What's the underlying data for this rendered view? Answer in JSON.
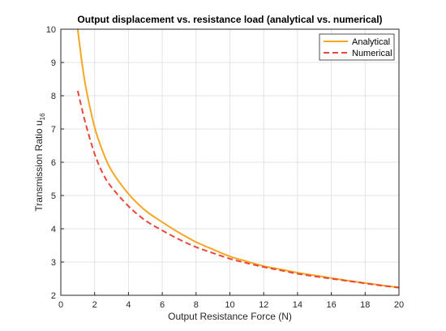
{
  "chart_data": {
    "type": "line",
    "title": "Output displacement vs. resistance load (analytical vs. numerical)",
    "xlabel": "Output Resistance Force (N)",
    "ylabel": "Transmission  Ratio  u",
    "ylabel_subscript": "16",
    "xlim": [
      0,
      20
    ],
    "ylim": [
      2,
      10
    ],
    "xticks": [
      0,
      2,
      4,
      6,
      8,
      10,
      12,
      14,
      16,
      18,
      20
    ],
    "yticks": [
      2,
      3,
      4,
      5,
      6,
      7,
      8,
      9,
      10
    ],
    "grid": true,
    "legend_position": "top-right",
    "series": [
      {
        "name": "Analytical",
        "color": "#f5a623",
        "style": "solid",
        "x": [
          1.0,
          1.25,
          1.5,
          2.0,
          2.5,
          3.0,
          4.0,
          5.0,
          6.0,
          7.0,
          8.0,
          9.0,
          10.0,
          11.0,
          12.0,
          13.0,
          14.0,
          15.0,
          16.0,
          17.0,
          18.0,
          19.0,
          20.0
        ],
        "y": [
          10.0,
          9.0,
          8.2,
          7.05,
          6.3,
          5.75,
          5.05,
          4.55,
          4.2,
          3.88,
          3.6,
          3.38,
          3.17,
          3.02,
          2.88,
          2.78,
          2.68,
          2.6,
          2.52,
          2.44,
          2.37,
          2.3,
          2.24
        ]
      },
      {
        "name": "Numerical",
        "color": "#e8483a",
        "style": "dashed",
        "x": [
          1.0,
          1.25,
          1.5,
          2.0,
          2.5,
          3.0,
          4.0,
          5.0,
          6.0,
          7.0,
          8.0,
          9.0,
          10.0,
          11.0,
          12.0,
          13.0,
          14.0,
          15.0,
          16.0,
          17.0,
          18.0,
          19.0,
          20.0
        ],
        "y": [
          8.15,
          7.6,
          7.1,
          6.25,
          5.65,
          5.25,
          4.68,
          4.25,
          3.95,
          3.68,
          3.45,
          3.27,
          3.1,
          2.97,
          2.85,
          2.75,
          2.65,
          2.57,
          2.5,
          2.43,
          2.36,
          2.29,
          2.23
        ]
      }
    ]
  }
}
